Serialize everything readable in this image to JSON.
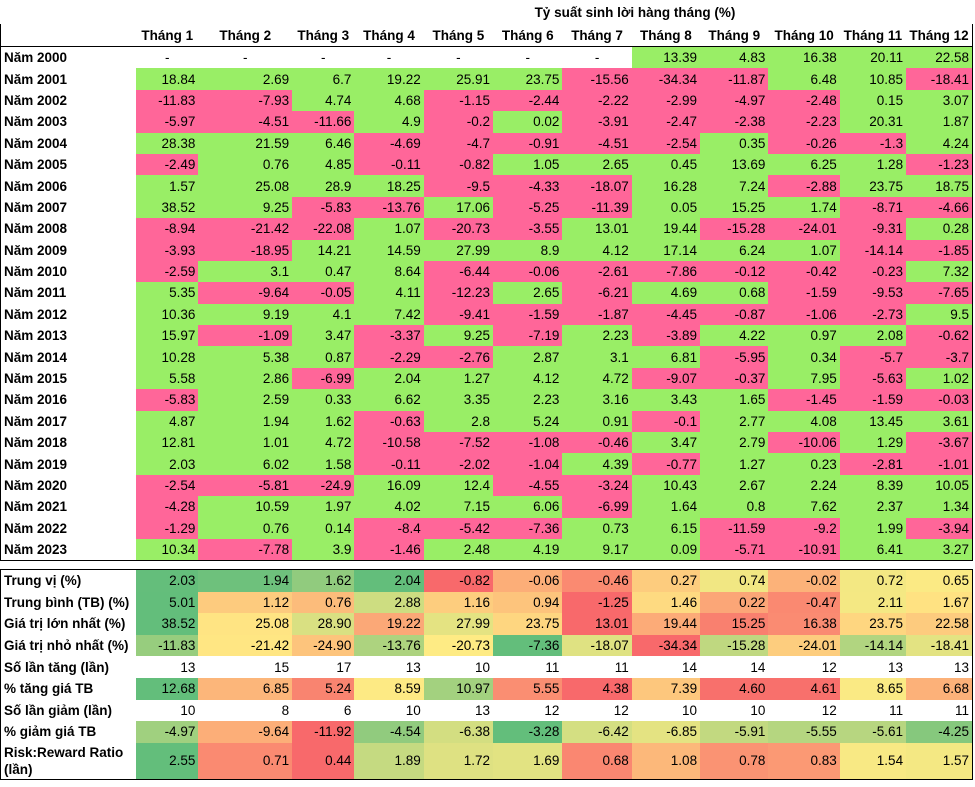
{
  "title": "Tỷ suất sinh lời hàng tháng (%)",
  "months": [
    "Tháng 1",
    "Tháng 2",
    "Tháng 3",
    "Tháng 4",
    "Tháng 5",
    "Tháng 6",
    "Tháng 7",
    "Tháng 8",
    "Tháng 9",
    "Tháng 10",
    "Tháng 11",
    "Tháng 12"
  ],
  "colors": {
    "positive": "#99ee66",
    "negative": "#ff6699",
    "stat_low": "#f8696b",
    "stat_mid": "#ffeb84",
    "stat_high": "#63be7b"
  },
  "years": [
    {
      "label": "Năm 2000",
      "values": [
        "-",
        "-",
        "-",
        "-",
        "-",
        "-",
        "-",
        "13.39",
        "4.83",
        "16.38",
        "20.11",
        "22.58"
      ]
    },
    {
      "label": "Năm 2001",
      "values": [
        "18.84",
        "2.69",
        "6.7",
        "19.22",
        "25.91",
        "23.75",
        "-15.56",
        "-34.34",
        "-11.87",
        "6.48",
        "10.85",
        "-18.41"
      ]
    },
    {
      "label": "Năm 2002",
      "values": [
        "-11.83",
        "-7.93",
        "4.74",
        "4.68",
        "-1.15",
        "-2.44",
        "-2.22",
        "-2.99",
        "-4.97",
        "-2.48",
        "0.15",
        "3.07"
      ]
    },
    {
      "label": "Năm 2003",
      "values": [
        "-5.97",
        "-4.51",
        "-11.66",
        "4.9",
        "-0.2",
        "0.02",
        "-3.91",
        "-2.47",
        "-2.38",
        "-2.23",
        "20.31",
        "1.87"
      ]
    },
    {
      "label": "Năm 2004",
      "values": [
        "28.38",
        "21.59",
        "6.46",
        "-4.69",
        "-4.7",
        "-0.91",
        "-4.51",
        "-2.54",
        "0.35",
        "-0.26",
        "-1.3",
        "4.24"
      ]
    },
    {
      "label": "Năm 2005",
      "values": [
        "-2.49",
        "0.76",
        "4.85",
        "-0.11",
        "-0.82",
        "1.05",
        "2.65",
        "0.45",
        "13.69",
        "6.25",
        "1.28",
        "-1.23"
      ]
    },
    {
      "label": "Năm 2006",
      "values": [
        "1.57",
        "25.08",
        "28.9",
        "18.25",
        "-9.5",
        "-4.33",
        "-18.07",
        "16.28",
        "7.24",
        "-2.88",
        "23.75",
        "18.75"
      ]
    },
    {
      "label": "Năm 2007",
      "values": [
        "38.52",
        "9.25",
        "-5.83",
        "-13.76",
        "17.06",
        "-5.25",
        "-11.39",
        "0.05",
        "15.25",
        "1.74",
        "-8.71",
        "-4.66"
      ]
    },
    {
      "label": "Năm 2008",
      "values": [
        "-8.94",
        "-21.42",
        "-22.08",
        "1.07",
        "-20.73",
        "-3.55",
        "13.01",
        "19.44",
        "-15.28",
        "-24.01",
        "-9.31",
        "0.28"
      ]
    },
    {
      "label": "Năm 2009",
      "values": [
        "-3.93",
        "-18.95",
        "14.21",
        "14.59",
        "27.99",
        "8.9",
        "4.12",
        "17.14",
        "6.24",
        "1.07",
        "-14.14",
        "-1.85"
      ]
    },
    {
      "label": "Năm 2010",
      "values": [
        "-2.59",
        "3.1",
        "0.47",
        "8.64",
        "-6.44",
        "-0.06",
        "-2.61",
        "-7.86",
        "-0.12",
        "-0.42",
        "-0.23",
        "7.32"
      ]
    },
    {
      "label": "Năm 2011",
      "values": [
        "5.35",
        "-9.64",
        "-0.05",
        "4.11",
        "-12.23",
        "2.65",
        "-6.21",
        "4.69",
        "0.68",
        "-1.59",
        "-9.53",
        "-7.65"
      ]
    },
    {
      "label": "Năm 2012",
      "values": [
        "10.36",
        "9.19",
        "4.1",
        "7.42",
        "-9.41",
        "-1.59",
        "-1.87",
        "-4.45",
        "-0.87",
        "-1.06",
        "-2.73",
        "9.5"
      ]
    },
    {
      "label": "Năm 2013",
      "values": [
        "15.97",
        "-1.09",
        "3.47",
        "-3.37",
        "9.25",
        "-7.19",
        "2.23",
        "-3.89",
        "4.22",
        "0.97",
        "2.08",
        "-0.62"
      ]
    },
    {
      "label": "Năm 2014",
      "values": [
        "10.28",
        "5.38",
        "0.87",
        "-2.29",
        "-2.76",
        "2.87",
        "3.1",
        "6.81",
        "-5.95",
        "0.34",
        "-5.7",
        "-3.7"
      ]
    },
    {
      "label": "Năm 2015",
      "values": [
        "5.58",
        "2.86",
        "-6.99",
        "2.04",
        "1.27",
        "4.12",
        "4.72",
        "-9.07",
        "-0.37",
        "7.95",
        "-5.63",
        "1.02"
      ]
    },
    {
      "label": "Năm 2016",
      "values": [
        "-5.83",
        "2.59",
        "0.33",
        "6.62",
        "3.35",
        "2.23",
        "3.16",
        "3.43",
        "1.65",
        "-1.45",
        "-1.59",
        "-0.03"
      ]
    },
    {
      "label": "Năm 2017",
      "values": [
        "4.87",
        "1.94",
        "1.62",
        "-0.63",
        "2.8",
        "5.24",
        "0.91",
        "-0.1",
        "2.77",
        "4.08",
        "13.45",
        "3.61"
      ]
    },
    {
      "label": "Năm 2018",
      "values": [
        "12.81",
        "1.01",
        "4.72",
        "-10.58",
        "-7.52",
        "-1.08",
        "-0.46",
        "3.47",
        "2.79",
        "-10.06",
        "1.29",
        "-3.67"
      ]
    },
    {
      "label": "Năm 2019",
      "values": [
        "2.03",
        "6.02",
        "1.58",
        "-0.11",
        "-2.02",
        "-1.04",
        "4.39",
        "-0.77",
        "1.27",
        "0.23",
        "-2.81",
        "-1.01"
      ]
    },
    {
      "label": "Năm 2020",
      "values": [
        "-2.54",
        "-5.81",
        "-24.9",
        "16.09",
        "12.4",
        "-4.55",
        "-3.24",
        "10.43",
        "2.67",
        "2.24",
        "8.39",
        "10.05"
      ]
    },
    {
      "label": "Năm 2021",
      "values": [
        "-4.28",
        "10.59",
        "1.97",
        "4.02",
        "7.15",
        "6.06",
        "-6.99",
        "1.64",
        "0.8",
        "7.62",
        "2.37",
        "1.34"
      ]
    },
    {
      "label": "Năm 2022",
      "values": [
        "-1.29",
        "0.76",
        "0.14",
        "-8.4",
        "-5.42",
        "-7.36",
        "0.73",
        "6.15",
        "-11.59",
        "-9.2",
        "1.99",
        "-3.94"
      ]
    },
    {
      "label": "Năm 2023",
      "values": [
        "10.34",
        "-7.78",
        "3.9",
        "-1.46",
        "2.48",
        "4.19",
        "9.17",
        "0.09",
        "-5.71",
        "-10.91",
        "6.41",
        "3.27"
      ]
    }
  ],
  "stats": [
    {
      "label": "Trung vị (%)",
      "values": [
        "2.03",
        "1.94",
        "1.62",
        "2.04",
        "-0.82",
        "-0.06",
        "-0.46",
        "0.27",
        "0.74",
        "-0.02",
        "0.72",
        "0.65"
      ],
      "scale": true
    },
    {
      "label": "Trung bình (TB) (%)",
      "values": [
        "5.01",
        "1.12",
        "0.76",
        "2.88",
        "1.16",
        "0.94",
        "-1.25",
        "1.46",
        "0.22",
        "-0.47",
        "2.11",
        "1.67"
      ],
      "scale": true
    },
    {
      "label": "Giá trị lớn nhất (%)",
      "values": [
        "38.52",
        "25.08",
        "28.90",
        "19.22",
        "27.99",
        "23.75",
        "13.01",
        "19.44",
        "15.25",
        "16.38",
        "23.75",
        "22.58"
      ],
      "scale": true
    },
    {
      "label": "Giá trị nhỏ nhất (%)",
      "values": [
        "-11.83",
        "-21.42",
        "-24.90",
        "-13.76",
        "-20.73",
        "-7.36",
        "-18.07",
        "-34.34",
        "-15.28",
        "-24.01",
        "-14.14",
        "-18.41"
      ],
      "scale": true
    },
    {
      "label": "Số lần tăng (lần)",
      "values": [
        "13",
        "15",
        "17",
        "13",
        "10",
        "11",
        "11",
        "14",
        "14",
        "12",
        "13",
        "13"
      ],
      "scale": false
    },
    {
      "label": "% tăng giá TB",
      "values": [
        "12.68",
        "6.85",
        "5.24",
        "8.59",
        "10.97",
        "5.55",
        "4.38",
        "7.39",
        "4.60",
        "4.61",
        "8.65",
        "6.68"
      ],
      "scale": true
    },
    {
      "label": "Số lần giảm (lần)",
      "values": [
        "10",
        "8",
        "6",
        "10",
        "13",
        "12",
        "12",
        "10",
        "10",
        "12",
        "11",
        "11"
      ],
      "scale": false
    },
    {
      "label": "% giảm giá TB",
      "values": [
        "-4.97",
        "-9.64",
        "-11.92",
        "-4.54",
        "-6.38",
        "-3.28",
        "-6.42",
        "-6.85",
        "-5.91",
        "-5.55",
        "-5.61",
        "-4.25"
      ],
      "scale": true
    },
    {
      "label": "Risk:Reward Ratio (lần)",
      "values": [
        "2.55",
        "0.71",
        "0.44",
        "1.89",
        "1.72",
        "1.69",
        "0.68",
        "1.08",
        "0.78",
        "0.83",
        "1.54",
        "1.57"
      ],
      "scale": true
    }
  ]
}
